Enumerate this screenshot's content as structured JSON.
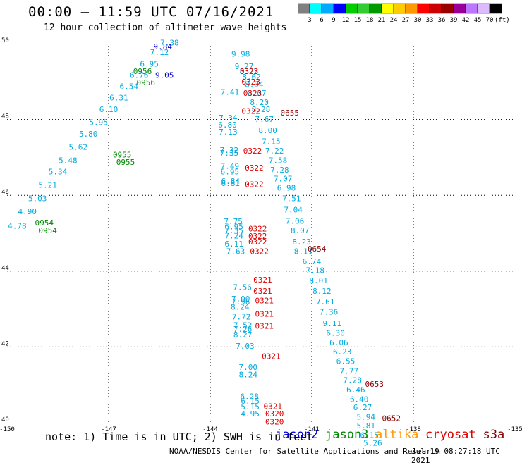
{
  "header": {
    "title": "00:00 – 11:59 UTC 07/16/2021",
    "subtitle": "12 hour collection of altimeter wave heights"
  },
  "colorbar": {
    "labels": [
      "3",
      "6",
      "9",
      "12",
      "15",
      "18",
      "21",
      "24",
      "27",
      "30",
      "33",
      "36",
      "39",
      "42",
      "45",
      "70"
    ],
    "colors": [
      "#808080",
      "#00ffff",
      "#00aaff",
      "#0000ff",
      "#00cc00",
      "#33cc33",
      "#009900",
      "#ffff00",
      "#ffcc00",
      "#ff9900",
      "#ff0000",
      "#cc0000",
      "#990000",
      "#990099",
      "#bb77ff",
      "#ddbbff",
      "#000000"
    ],
    "unit": "(ft)"
  },
  "legend": {
    "satellites": [
      {
        "name": "jason2",
        "color": "#0000cc"
      },
      {
        "name": "jason3",
        "color": "#008800"
      },
      {
        "name": "altika",
        "color": "#ff9900"
      },
      {
        "name": "cryosat",
        "color": "#dd0000"
      },
      {
        "name": "s3a",
        "color": "#880000"
      }
    ]
  },
  "footer": {
    "note": "note: 1) Time is in UTC; 2) SWH is in feet",
    "credits": "NOAA/NESDIS Center for Satellite Applications and Research",
    "timestamp": "Jul 19 08:27:18 UTC 2021"
  },
  "chart_data": {
    "type": "scatter",
    "title": "00:00 – 11:59 UTC 07/16/2021",
    "subtitle": "12 hour collection of altimeter wave heights",
    "xlim": [
      -150,
      -135
    ],
    "ylim": [
      40,
      50
    ],
    "x_ticks": [
      "-150",
      "-147",
      "-144",
      "-141",
      "-138",
      "-135"
    ],
    "y_ticks": [
      "50",
      "48",
      "46",
      "44",
      "42",
      "40"
    ],
    "grid": true,
    "series": [
      {
        "name": "swh-track-1",
        "color": "#00aadd",
        "points": [
          [
            -143.42,
            48.65,
            "7.41"
          ],
          [
            -143.47,
            47.97,
            "7.34"
          ],
          [
            -143.49,
            47.79,
            "6.80"
          ],
          [
            -143.47,
            47.6,
            "7.13"
          ],
          [
            -143.44,
            47.12,
            "7.32"
          ],
          [
            -143.44,
            47.04,
            "7.35"
          ],
          [
            -143.42,
            46.7,
            "7.49"
          ],
          [
            -143.42,
            46.55,
            "6.95"
          ],
          [
            -143.4,
            46.3,
            "6.84"
          ],
          [
            -143.4,
            46.25,
            "6.81"
          ],
          [
            -143.32,
            45.24,
            "7.75"
          ],
          [
            -143.3,
            45.1,
            "6.95"
          ],
          [
            -143.3,
            45.0,
            "7.35"
          ],
          [
            -143.3,
            44.86,
            "7.24"
          ],
          [
            -143.3,
            44.65,
            "6.11"
          ],
          [
            -143.25,
            44.45,
            "7.63"
          ],
          [
            -143.05,
            43.5,
            "7.56"
          ],
          [
            -143.1,
            43.2,
            "7.00"
          ],
          [
            -143.1,
            43.12,
            "7.96"
          ],
          [
            -143.12,
            42.98,
            "8.24"
          ],
          [
            -143.08,
            42.72,
            "7.72"
          ],
          [
            -143.04,
            42.5,
            "7.52"
          ],
          [
            -143.04,
            42.4,
            "7.26"
          ],
          [
            -143.04,
            42.25,
            "8.27"
          ],
          [
            -142.97,
            41.95,
            "7.03"
          ],
          [
            -142.88,
            41.39,
            "7.00"
          ],
          [
            -142.88,
            41.2,
            "8.24"
          ],
          [
            -142.84,
            40.62,
            "6.28"
          ],
          [
            -142.82,
            40.5,
            "6.15"
          ],
          [
            -142.82,
            40.35,
            "5.15"
          ],
          [
            -142.82,
            40.17,
            "4.95"
          ]
        ]
      },
      {
        "name": "swh-track-2",
        "color": "#00aadd",
        "points": [
          [
            -143.1,
            49.66,
            "9.98"
          ],
          [
            -143.0,
            49.33,
            "9.27"
          ],
          [
            -142.86,
            49.2,
            "8.22"
          ],
          [
            -142.78,
            49.05,
            "8.62"
          ],
          [
            -142.7,
            48.86,
            "8.94"
          ],
          [
            -142.62,
            48.62,
            "8.07"
          ],
          [
            -142.55,
            48.38,
            "8.20"
          ],
          [
            -142.5,
            48.2,
            "8.28"
          ],
          [
            -142.4,
            47.94,
            "7.67"
          ],
          [
            -142.3,
            47.64,
            "8.00"
          ],
          [
            -142.2,
            47.35,
            "7.15"
          ],
          [
            -142.1,
            47.1,
            "7.22"
          ],
          [
            -142.0,
            46.85,
            "7.58"
          ],
          [
            -141.95,
            46.6,
            "7.28"
          ],
          [
            -141.85,
            46.37,
            "7.07"
          ],
          [
            -141.75,
            46.12,
            "6.98"
          ],
          [
            -141.6,
            45.85,
            "7.51"
          ],
          [
            -141.55,
            45.55,
            "7.04"
          ],
          [
            -141.5,
            45.25,
            "7.06"
          ],
          [
            -141.35,
            45.0,
            "8.07"
          ],
          [
            -141.3,
            44.7,
            "8.23"
          ],
          [
            -141.25,
            44.45,
            "8.11"
          ],
          [
            -141.0,
            44.18,
            "6.74"
          ],
          [
            -140.9,
            43.95,
            "7.18"
          ],
          [
            -140.8,
            43.68,
            "8.01"
          ],
          [
            -140.7,
            43.4,
            "8.12"
          ],
          [
            -140.6,
            43.12,
            "7.61"
          ],
          [
            -140.5,
            42.85,
            "7.36"
          ],
          [
            -140.4,
            42.55,
            "9.11"
          ],
          [
            -140.3,
            42.3,
            "6.30"
          ],
          [
            -140.2,
            42.04,
            "6.06"
          ],
          [
            -140.1,
            41.8,
            "6.23"
          ],
          [
            -140.0,
            41.55,
            "6.55"
          ],
          [
            -139.9,
            41.29,
            "7.77"
          ],
          [
            -139.8,
            41.05,
            "7.28"
          ],
          [
            -139.7,
            40.8,
            "6.46"
          ],
          [
            -139.6,
            40.55,
            "6.40"
          ],
          [
            -139.5,
            40.33,
            "6.27"
          ],
          [
            -139.4,
            40.08,
            "5.94"
          ],
          [
            -139.4,
            39.85,
            "5.81"
          ],
          [
            -139.3,
            39.6,
            "6.15"
          ],
          [
            -139.2,
            39.4,
            "5.26"
          ]
        ]
      },
      {
        "name": "swh-track-3",
        "color": "#00aadd",
        "points": [
          [
            -149.7,
            45.12,
            "4.78"
          ],
          [
            -149.4,
            45.5,
            "4.90"
          ],
          [
            -149.1,
            45.85,
            "5.03"
          ],
          [
            -148.8,
            46.2,
            "5.21"
          ],
          [
            -148.5,
            46.55,
            "5.34"
          ],
          [
            -148.2,
            46.85,
            "5.48"
          ],
          [
            -147.9,
            47.2,
            "5.62"
          ],
          [
            -147.6,
            47.55,
            "5.80"
          ],
          [
            -147.3,
            47.85,
            "5.95"
          ],
          [
            -147.0,
            48.2,
            "6.10"
          ],
          [
            -146.7,
            48.5,
            "6.31"
          ],
          [
            -146.4,
            48.8,
            "6.54"
          ],
          [
            -146.1,
            49.1,
            "6.76"
          ],
          [
            -145.8,
            49.4,
            "6.95"
          ],
          [
            -145.5,
            49.7,
            "7.12"
          ],
          [
            -145.2,
            49.95,
            "7.38"
          ]
        ]
      },
      {
        "name": "jason2",
        "color": "#0000cc",
        "points": [
          [
            -145.4,
            49.85,
            "9.84"
          ],
          [
            -145.35,
            49.1,
            "9.05"
          ]
        ]
      },
      {
        "name": "jason3",
        "color": "#008800",
        "points": [
          [
            -146.0,
            49.2,
            "0956"
          ],
          [
            -145.9,
            48.9,
            "0956"
          ],
          [
            -146.6,
            47.0,
            "0955"
          ],
          [
            -146.5,
            46.8,
            "0955"
          ],
          [
            -148.9,
            45.2,
            "0954"
          ],
          [
            -148.8,
            45.0,
            "0954"
          ]
        ]
      },
      {
        "name": "cryosat",
        "color": "#dd0000",
        "points": [
          [
            -142.85,
            49.2,
            "0323"
          ],
          [
            -142.8,
            48.92,
            "0323"
          ],
          [
            -142.75,
            48.62,
            "0323"
          ],
          [
            -142.8,
            48.15,
            "0322"
          ],
          [
            -142.75,
            47.1,
            "0322"
          ],
          [
            -142.7,
            46.65,
            "0322"
          ],
          [
            -142.7,
            46.22,
            "0322"
          ],
          [
            -142.6,
            45.05,
            "0322"
          ],
          [
            -142.6,
            44.85,
            "0322"
          ],
          [
            -142.6,
            44.7,
            "0322"
          ],
          [
            -142.55,
            44.45,
            "0322"
          ],
          [
            -142.45,
            43.7,
            "0321"
          ],
          [
            -142.45,
            43.4,
            "0321"
          ],
          [
            -142.4,
            43.15,
            "0321"
          ],
          [
            -142.4,
            42.8,
            "0321"
          ],
          [
            -142.4,
            42.48,
            "0321"
          ],
          [
            -142.2,
            41.68,
            "0321"
          ],
          [
            -142.15,
            40.36,
            "0321"
          ],
          [
            -142.1,
            40.17,
            "0320"
          ],
          [
            -142.1,
            39.95,
            "0320"
          ]
        ]
      },
      {
        "name": "s3a",
        "color": "#880000",
        "points": [
          [
            -141.65,
            48.1,
            "0655"
          ],
          [
            -140.85,
            44.52,
            "0654"
          ],
          [
            -139.15,
            40.95,
            "0653"
          ],
          [
            -138.65,
            40.05,
            "0652"
          ]
        ]
      }
    ]
  }
}
